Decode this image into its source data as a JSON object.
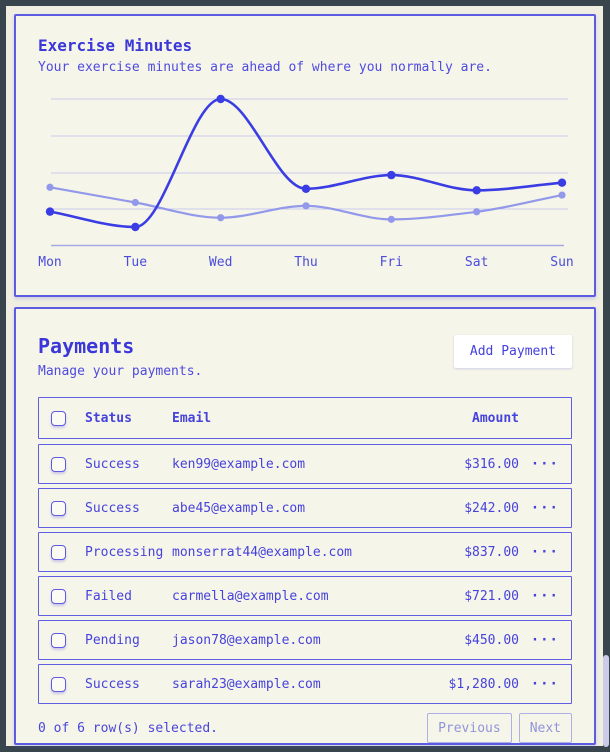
{
  "exercise_card": {
    "title": "Exercise Minutes",
    "subtitle": "Your exercise minutes are ahead of where you normally are."
  },
  "chart_data": {
    "type": "line",
    "title": "Exercise Minutes",
    "categories": [
      "Mon",
      "Tue",
      "Wed",
      "Thu",
      "Fri",
      "Sat",
      "Sun"
    ],
    "series": [
      {
        "name": "series-1-dark",
        "values": [
          240,
          139,
          980,
          390,
          480,
          380,
          430
        ],
        "color": "#3a3de3",
        "dot_radius": 4.2,
        "stroke_width": 2.6
      },
      {
        "name": "series-2-light",
        "values": [
          400,
          300,
          200,
          278,
          189,
          239,
          349
        ],
        "color": "#9298ea",
        "dot_radius": 3.6,
        "stroke_width": 2.2
      }
    ],
    "ylim": [
      139,
      980
    ],
    "grid": true,
    "legend": "none",
    "grid_color": "#c9cbf0",
    "axis_color": "#a6aae2",
    "xlabel": "",
    "ylabel": ""
  },
  "payments_card": {
    "title": "Payments",
    "subtitle": "Manage your payments.",
    "add_button": "Add Payment",
    "more_icon": "···",
    "table": {
      "columns": {
        "status": "Status",
        "email": "Email",
        "amount": "Amount"
      },
      "rows": [
        {
          "status": "Success",
          "email": "ken99@example.com",
          "amount": "$316.00"
        },
        {
          "status": "Success",
          "email": "abe45@example.com",
          "amount": "$242.00"
        },
        {
          "status": "Processing",
          "email": "monserrat44@example.com",
          "amount": "$837.00"
        },
        {
          "status": "Failed",
          "email": "carmella@example.com",
          "amount": "$721.00"
        },
        {
          "status": "Pending",
          "email": "jason78@example.com",
          "amount": "$450.00"
        },
        {
          "status": "Success",
          "email": "sarah23@example.com",
          "amount": "$1,280.00"
        }
      ]
    },
    "footer": {
      "selected_text": "0 of 6 row(s) selected.",
      "previous": "Previous",
      "next": "Next"
    }
  },
  "colors": {
    "frame": "#39454c",
    "page_bg": "#efeee1",
    "card_bg": "#f6f5e9",
    "card_border": "#5d5be2",
    "ink": "#4642dc",
    "title_ink": "#3b37d8",
    "muted_ink": "#9095da",
    "scrollbar_thumb": "#cbcbe9"
  }
}
